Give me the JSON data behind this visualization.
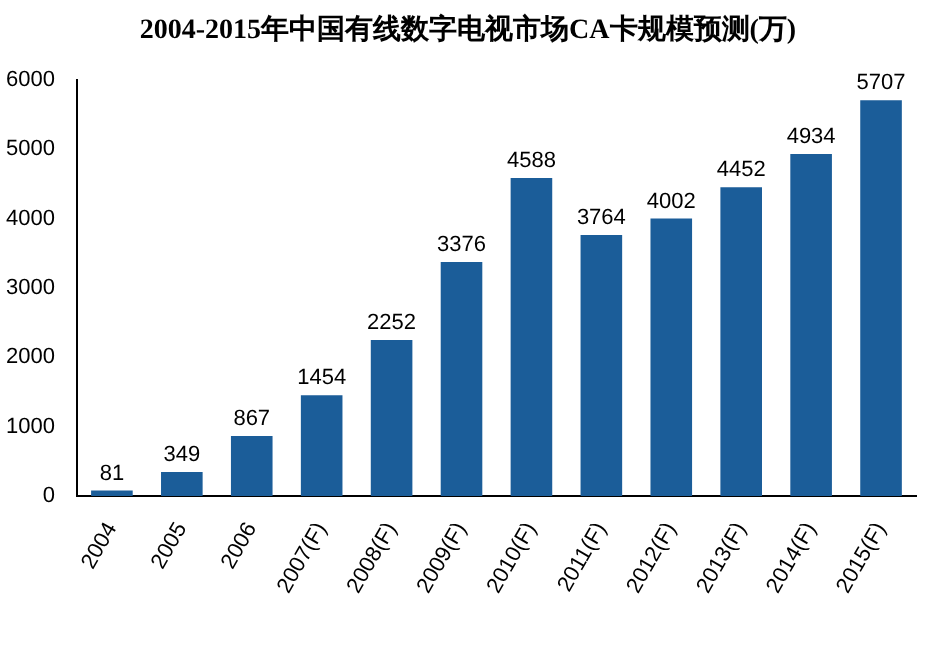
{
  "chart_data": {
    "type": "bar",
    "title": "2004-2015年中国有线数字电视市场CA卡规模预测(万)",
    "categories": [
      "2004",
      "2005",
      "2006",
      "2007(F)",
      "2008(F)",
      "2009(F)",
      "2010(F)",
      "2011(F)",
      "2012(F)",
      "2013(F)",
      "2014(F)",
      "2015(F)"
    ],
    "values": [
      81,
      349,
      867,
      1454,
      2252,
      3376,
      4588,
      3764,
      4002,
      4452,
      4934,
      5707
    ],
    "color": "#1b5d99",
    "ylim": [
      0,
      6000
    ],
    "yticks": [
      0,
      1000,
      2000,
      3000,
      4000,
      5000,
      6000
    ],
    "grid": false,
    "legend": false,
    "data_labels": true
  }
}
